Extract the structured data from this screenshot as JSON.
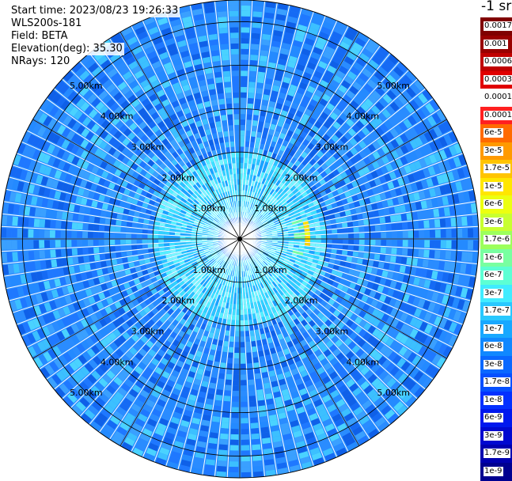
{
  "info": {
    "start_time": "Start time: 2023/08/23 19:26:33",
    "instrument": "WLS200s-181",
    "field": "Field: BETA",
    "elevation": "Elevation(deg): 35.30",
    "nrays": "NRays: 120"
  },
  "colorbar": {
    "unit": "-1 sr",
    "labels": [
      "0.0017",
      "0.001",
      "0.0006",
      "0.0003",
      "0.00017",
      "0.0001",
      "6e-5",
      "3e-5",
      "1.7e-5",
      "1e-5",
      "6e-6",
      "3e-6",
      "1.7e-6",
      "1e-6",
      "6e-7",
      "3e-7",
      "1.7e-7",
      "1e-7",
      "6e-8",
      "3e-8",
      "1.7e-8",
      "1e-8",
      "6e-9",
      "3e-9",
      "1.7e-9",
      "1e-9"
    ],
    "colors": [
      "#800000",
      "#990000",
      "#c00000",
      "#e00000",
      "#ffffff",
      "#ff2020",
      "#ff6a00",
      "#ff9a00",
      "#ffc400",
      "#ffe600",
      "#ecff10",
      "#c8ff30",
      "#9cff5c",
      "#78ffa0",
      "#5cffd4",
      "#40ecff",
      "#28c8ff",
      "#18a8ff",
      "#1088ff",
      "#0a68ff",
      "#0650ff",
      "#0330ff",
      "#0018ee",
      "#0008d0",
      "#0000b0",
      "#000090"
    ]
  },
  "chart_data": {
    "type": "heatmap",
    "subtype": "ppi-polar",
    "nrays": 120,
    "range_km_max": 5.5,
    "range_ring_labels": [
      "1.00km",
      "2.00km",
      "3.00km",
      "4.00km",
      "5.00km"
    ],
    "range_rings_km": [
      1,
      2,
      3,
      4,
      5
    ],
    "radial_spokes_deg": [
      0,
      30,
      60,
      90,
      120,
      150,
      180,
      210,
      240,
      270,
      300,
      330
    ],
    "ring_label_directions": [
      "upper-left",
      "upper-right",
      "lower-left",
      "lower-right"
    ],
    "colormap": "jet",
    "value_range": [
      "1e-9",
      "0.0017"
    ],
    "scale": "log",
    "field": "BETA",
    "dominant_values": [
      {
        "region": "inner 0-0.5km",
        "approx": "1e-8"
      },
      {
        "region": "0.5-2.0km",
        "approx": "2e-8"
      },
      {
        "region": "2.0-5.5km",
        "approx": "5e-9 to 1e-8"
      }
    ],
    "hot_spot": {
      "azimuth_deg": [
        75,
        95
      ],
      "range_km": [
        1.5,
        1.6
      ],
      "approx": "1e-5"
    }
  }
}
